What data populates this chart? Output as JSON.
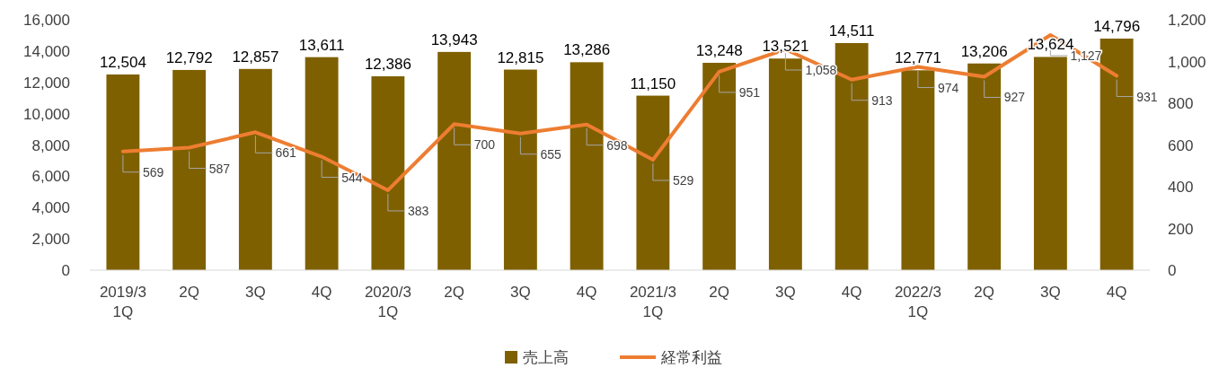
{
  "chart_data": {
    "type": "bar",
    "categories": [
      "2019/3\n1Q",
      "2Q",
      "3Q",
      "4Q",
      "2020/3\n1Q",
      "2Q",
      "3Q",
      "4Q",
      "2021/3\n1Q",
      "2Q",
      "3Q",
      "4Q",
      "2022/3\n1Q",
      "2Q",
      "3Q",
      "4Q"
    ],
    "series": [
      {
        "name": "売上高",
        "color": "#7f6000",
        "values": [
          12504,
          12792,
          12857,
          13611,
          12386,
          13943,
          12815,
          13286,
          11150,
          13248,
          13521,
          14511,
          12771,
          13206,
          13624,
          14796
        ],
        "value_labels": [
          "12,504",
          "12,792",
          "12,857",
          "13,611",
          "12,386",
          "13,943",
          "12,815",
          "13,286",
          "11,150",
          "13,248",
          "13,521",
          "14,511",
          "12,771",
          "13,206",
          "13,624",
          "14,796"
        ]
      },
      {
        "name": "経常利益",
        "type": "line",
        "axis": "y2",
        "color": "#ed7d31",
        "values": [
          569,
          587,
          661,
          544,
          383,
          700,
          655,
          698,
          529,
          951,
          1058,
          913,
          974,
          927,
          1127,
          931
        ],
        "value_labels": [
          "569",
          "587",
          "661",
          "544",
          "383",
          "700",
          "655",
          "698",
          "529",
          "951",
          "1,058",
          "913",
          "974",
          "927",
          "1,127",
          "931"
        ]
      }
    ],
    "ylim": [
      0,
      16000
    ],
    "yticks": [
      {
        "value": 0,
        "label": "0"
      },
      {
        "value": 2000,
        "label": "2,000"
      },
      {
        "value": 4000,
        "label": "4,000"
      },
      {
        "value": 6000,
        "label": "6,000"
      },
      {
        "value": 8000,
        "label": "8,000"
      },
      {
        "value": 10000,
        "label": "10,000"
      },
      {
        "value": 12000,
        "label": "12,000"
      },
      {
        "value": 14000,
        "label": "14,000"
      },
      {
        "value": 16000,
        "label": "16,000"
      }
    ],
    "y2lim": [
      0,
      1200
    ],
    "y2ticks": [
      {
        "value": 0,
        "label": "0"
      },
      {
        "value": 200,
        "label": "200"
      },
      {
        "value": 400,
        "label": "400"
      },
      {
        "value": 600,
        "label": "600"
      },
      {
        "value": 800,
        "label": "800"
      },
      {
        "value": 1000,
        "label": "1,000"
      },
      {
        "value": 1200,
        "label": "1,200"
      }
    ],
    "legend": "bottom",
    "grid": false
  }
}
